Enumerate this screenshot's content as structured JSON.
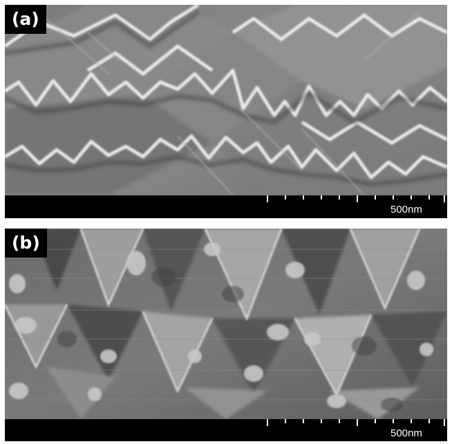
{
  "panels": [
    {
      "label": "(a)",
      "scale_bar_text": "500nm",
      "description_icon": "sem-micrograph-smooth-pyramids"
    },
    {
      "label": "(b)",
      "scale_bar_text": "500nm",
      "description_icon": "sem-micrograph-textured-pyramids"
    }
  ],
  "colors": {
    "background": "#ffffff",
    "strip": "#000000",
    "text": "#ffffff"
  }
}
